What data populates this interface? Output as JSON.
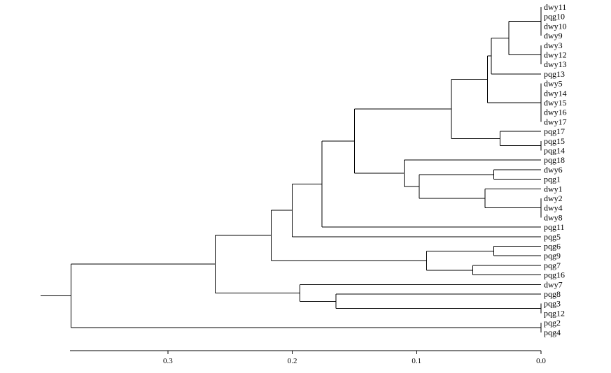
{
  "dendrogram": {
    "leaves": [
      "dwy11",
      "pqg10",
      "dwy10",
      "dwy9",
      "dwy3",
      "dwy12",
      "dwy13",
      "pqg13",
      "dwy5",
      "dwy14",
      "dwy15",
      "dwy16",
      "dwy17",
      "pqg17",
      "pqg15",
      "pqg14",
      "pqg18",
      "dwy6",
      "pqg1",
      "dwy1",
      "dwy2",
      "dwy4",
      "dwy8",
      "pqg11",
      "pqg5",
      "pqg6",
      "pqg9",
      "pqg7",
      "pqg16",
      "dwy7",
      "pqg8",
      "pqg3",
      "pqg12",
      "pqg2",
      "pqg4"
    ],
    "axis": {
      "ticks": [
        {
          "value": 0.3,
          "label": "0.3"
        },
        {
          "value": 0.2,
          "label": "0.2"
        },
        {
          "value": 0.1,
          "label": "0.1"
        },
        {
          "value": 0.0,
          "label": "0.0"
        }
      ]
    },
    "tree": {
      "h": 0.378,
      "c": [
        {
          "h": 0.262,
          "c": [
            {
              "h": 0.217,
              "c": [
                {
                  "h": 0.2,
                  "c": [
                    {
                      "h": 0.176,
                      "c": [
                        {
                          "h": 0.15,
                          "c": [
                            {
                              "h": 0.072,
                              "c": [
                                {
                                  "h": 0.043,
                                  "c": [
                                    {
                                      "h": 0.04,
                                      "c": [
                                        {
                                          "h": 0.026,
                                          "c": [
                                            {
                                              "h": 0.026,
                                              "c": [
                                                {
                                                  "h": 0.0,
                                                  "c": [
                                                    {
                                                      "l": "dwy11"
                                                    },
                                                    {
                                                      "l": "pqg10"
                                                    },
                                                    {
                                                      "l": "dwy10"
                                                    },
                                                    {
                                                      "l": "dwy9"
                                                    }
                                                  ]
                                                },
                                                {
                                                  "h": 0.0,
                                                  "c": [
                                                    {
                                                      "l": "dwy3"
                                                    },
                                                    {
                                                      "l": "dwy12"
                                                    },
                                                    {
                                                      "l": "dwy13"
                                                    }
                                                  ]
                                                }
                                              ]
                                            }
                                          ]
                                        },
                                        {
                                          "l": "pqg13"
                                        }
                                      ]
                                    },
                                    {
                                      "h": 0.0,
                                      "c": [
                                        {
                                          "l": "dwy5"
                                        },
                                        {
                                          "l": "dwy14"
                                        },
                                        {
                                          "l": "dwy15"
                                        },
                                        {
                                          "l": "dwy16"
                                        },
                                        {
                                          "l": "dwy17"
                                        }
                                      ]
                                    }
                                  ]
                                },
                                {
                                  "h": 0.033,
                                  "c": [
                                    {
                                      "l": "pqg17"
                                    },
                                    {
                                      "h": 0.0,
                                      "c": [
                                        {
                                          "l": "pqg15"
                                        },
                                        {
                                          "l": "pqg14"
                                        }
                                      ]
                                    }
                                  ]
                                }
                              ]
                            },
                            {
                              "h": 0.11,
                              "c": [
                                {
                                  "l": "pqg18"
                                },
                                {
                                  "h": 0.098,
                                  "c": [
                                    {
                                      "h": 0.038,
                                      "c": [
                                        {
                                          "l": "dwy6"
                                        },
                                        {
                                          "l": "pqg1"
                                        }
                                      ]
                                    },
                                    {
                                      "h": 0.045,
                                      "c": [
                                        {
                                          "l": "dwy1"
                                        },
                                        {
                                          "h": 0.0,
                                          "c": [
                                            {
                                              "l": "dwy2"
                                            },
                                            {
                                              "l": "dwy4"
                                            },
                                            {
                                              "l": "dwy8"
                                            }
                                          ]
                                        }
                                      ]
                                    }
                                  ]
                                }
                              ]
                            }
                          ]
                        },
                        {
                          "l": "pqg11"
                        }
                      ]
                    },
                    {
                      "l": "pqg5"
                    }
                  ]
                },
                {
                  "h": 0.092,
                  "c": [
                    {
                      "h": 0.038,
                      "c": [
                        {
                          "l": "pqg6"
                        },
                        {
                          "l": "pqg9"
                        }
                      ]
                    },
                    {
                      "h": 0.055,
                      "c": [
                        {
                          "l": "pqg7"
                        },
                        {
                          "l": "pqg16"
                        }
                      ]
                    }
                  ]
                }
              ]
            },
            {
              "h": 0.194,
              "c": [
                {
                  "l": "dwy7"
                },
                {
                  "h": 0.165,
                  "c": [
                    {
                      "l": "pqg8"
                    },
                    {
                      "h": 0.0,
                      "c": [
                        {
                          "l": "pqg3"
                        },
                        {
                          "l": "pqg12"
                        }
                      ]
                    }
                  ]
                }
              ]
            }
          ]
        },
        {
          "h": 0.0,
          "c": [
            {
              "l": "pqg2"
            },
            {
              "l": "pqg4"
            }
          ]
        }
      ]
    }
  }
}
